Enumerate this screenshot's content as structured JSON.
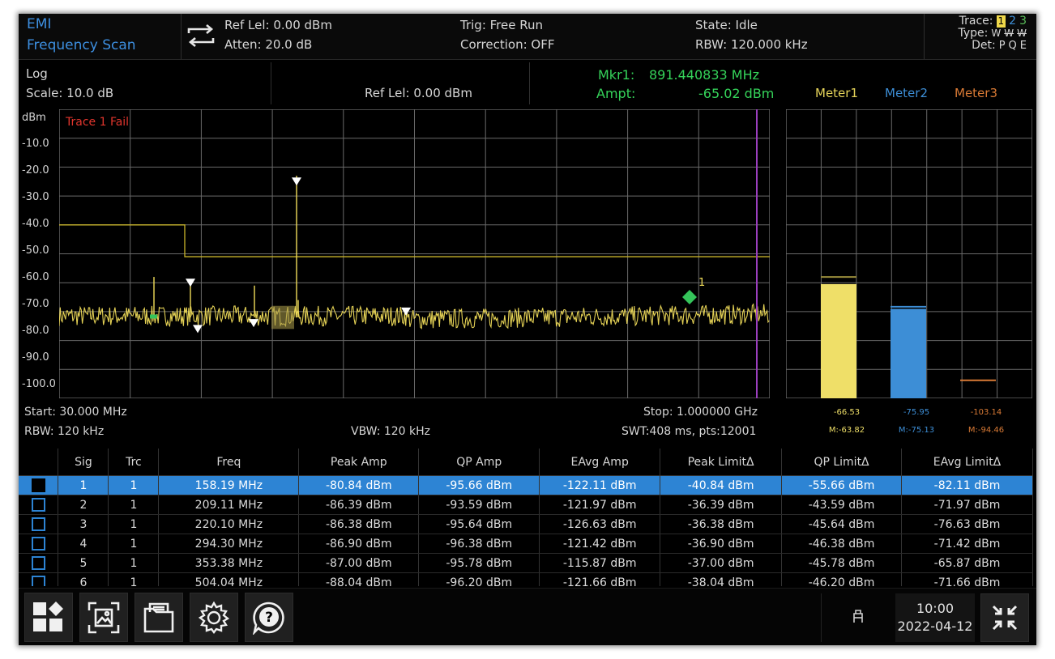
{
  "topbar": {
    "mode_line1": "EMI",
    "mode_line2": "Frequency Scan",
    "ref_level": "Ref Lel: 0.00 dBm",
    "atten": "Atten: 20.0 dB",
    "trig": "Trig: Free Run",
    "correction": "Correction: OFF",
    "state": "State: Idle",
    "rbw": "RBW: 120.000 kHz",
    "trace_label": "Trace:",
    "trace_nums": [
      "1",
      "2",
      "3"
    ],
    "type_label": "Type:",
    "type_vals": [
      "W",
      "W",
      "W"
    ],
    "det_label": "Det:",
    "det_vals": [
      "P",
      "Q",
      "E"
    ]
  },
  "info": {
    "scale_type": "Log",
    "scale": "Scale: 10.0 dB",
    "ref_level": "Ref Lel: 0.00 dBm",
    "mkr_label": "Mkr1:",
    "mkr_freq": "891.440833 MHz",
    "ampt_label": "Ampt:",
    "ampt_value": "-65.02 dBm",
    "meters": [
      "Meter1",
      "Meter2",
      "Meter3"
    ]
  },
  "colors": {
    "trace": "#f0dc5a",
    "limit": "#c9b42a",
    "marker": "#35c45a",
    "meter1": "#efdf68",
    "meter2": "#3d8ed6",
    "meter3": "#d97a35",
    "selected_row": "#2d84d4",
    "purple_line": "#9b3fbf"
  },
  "plot": {
    "unit": "dBm",
    "y_ticks": [
      "-10.0",
      "-20.0",
      "-30.0",
      "-40.0",
      "-50.0",
      "-60.0",
      "-70.0",
      "-80.0",
      "-90.0",
      "-100.0"
    ],
    "fail_text": "Trace 1 Fail",
    "marker_number": "1",
    "start": "Start: 30.000 MHz",
    "rbw": "RBW: 120 kHz",
    "vbw": "VBW: 120 kHz",
    "stop": "Stop: 1.000000 GHz",
    "swt": "SWT:408 ms, pts:12001"
  },
  "meter_values": {
    "m1": "-66.53",
    "m2": "-75.95",
    "m3": "-103.14",
    "m1_max": "M:-63.82",
    "m2_max": "M:-75.13",
    "m3_max": "M:-94.46",
    "m1_level": -66.53,
    "m2_level": -75.95,
    "m3_level": -103.14
  },
  "table": {
    "headers": [
      "Sig",
      "Trc",
      "Freq",
      "Peak Amp",
      "QP Amp",
      "EAvg Amp",
      "Peak LimitΔ",
      "QP LimitΔ",
      "EAvg LimitΔ"
    ],
    "rows": [
      [
        "1",
        "1",
        "158.19 MHz",
        "-80.84 dBm",
        "-95.66 dBm",
        "-122.11 dBm",
        "-40.84 dBm",
        "-55.66 dBm",
        "-82.11 dBm"
      ],
      [
        "2",
        "1",
        "209.11 MHz",
        "-86.39 dBm",
        "-93.59 dBm",
        "-121.97 dBm",
        "-36.39 dBm",
        "-43.59 dBm",
        "-71.97 dBm"
      ],
      [
        "3",
        "1",
        "220.10 MHz",
        "-86.38 dBm",
        "-95.64 dBm",
        "-126.63 dBm",
        "-36.38 dBm",
        "-45.64 dBm",
        "-76.63 dBm"
      ],
      [
        "4",
        "1",
        "294.30 MHz",
        "-86.90 dBm",
        "-96.38 dBm",
        "-121.42 dBm",
        "-36.90 dBm",
        "-46.38 dBm",
        "-71.42 dBm"
      ],
      [
        "5",
        "1",
        "353.38 MHz",
        "-87.00 dBm",
        "-95.78 dBm",
        "-115.87 dBm",
        "-37.00 dBm",
        "-45.78 dBm",
        "-65.87 dBm"
      ],
      [
        "6",
        "1",
        "504.04 MHz",
        "-88.04 dBm",
        "-96.20 dBm",
        "-121.66 dBm",
        "-38.04 dBm",
        "-46.20 dBm",
        "-71.66 dBm"
      ]
    ]
  },
  "footer": {
    "buttons": [
      "grid-icon",
      "screenshot-icon",
      "folder-icon",
      "settings-gear-icon",
      "help-icon"
    ],
    "time": "10:00",
    "date": "2022-04-12"
  }
}
